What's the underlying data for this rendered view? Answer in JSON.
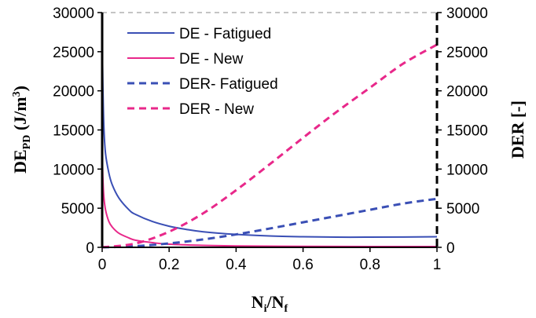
{
  "chart_data": {
    "type": "line",
    "xlabel": {
      "main": "N",
      "sub1": "i",
      "mid": "/N",
      "sub2": "f"
    },
    "ylabel_left": {
      "main": "DE",
      "sub": "PD",
      "mid": " (J/m",
      "sup": "3",
      "end": ")"
    },
    "ylabel_right": "DER [-]",
    "xlim": [
      0,
      1
    ],
    "ylim": [
      0,
      30000
    ],
    "x_ticks": [
      "0",
      "0.2",
      "0.4",
      "0.6",
      "0.8",
      "1"
    ],
    "y_ticks": [
      "0",
      "5000",
      "10000",
      "15000",
      "20000",
      "25000",
      "30000"
    ],
    "legend_position": "top-left",
    "series": [
      {
        "name": "DE - Fatigued",
        "color": "#3a4fb5",
        "dash": false,
        "axis": "left",
        "x": [
          0,
          0.002,
          0.005,
          0.01,
          0.02,
          0.03,
          0.05,
          0.08,
          0.1,
          0.15,
          0.2,
          0.25,
          0.3,
          0.4,
          0.5,
          0.6,
          0.7,
          0.8,
          0.9,
          1.0
        ],
        "y": [
          27500,
          21000,
          15500,
          12000,
          9500,
          8000,
          6300,
          4800,
          4200,
          3300,
          2700,
          2300,
          2000,
          1650,
          1450,
          1350,
          1300,
          1300,
          1320,
          1350
        ]
      },
      {
        "name": "DE - New",
        "color": "#e8288a",
        "dash": false,
        "axis": "left",
        "x": [
          0,
          0.002,
          0.005,
          0.01,
          0.02,
          0.03,
          0.05,
          0.08,
          0.1,
          0.15,
          0.2,
          0.3,
          0.4,
          0.6,
          0.8,
          1.0
        ],
        "y": [
          12500,
          9000,
          6500,
          4800,
          3300,
          2600,
          1800,
          1200,
          900,
          600,
          400,
          250,
          180,
          120,
          100,
          100
        ]
      },
      {
        "name": "DER- Fatigued",
        "color": "#3a4fb5",
        "dash": true,
        "axis": "right",
        "x": [
          0,
          0.1,
          0.2,
          0.3,
          0.4,
          0.5,
          0.6,
          0.7,
          0.8,
          0.9,
          1.0
        ],
        "y": [
          0,
          150,
          500,
          1000,
          1650,
          2400,
          3200,
          4000,
          4800,
          5600,
          6200
        ]
      },
      {
        "name": "DER - New",
        "color": "#e8288a",
        "dash": true,
        "axis": "right",
        "x": [
          0,
          0.1,
          0.2,
          0.3,
          0.4,
          0.5,
          0.6,
          0.7,
          0.8,
          0.9,
          1.0
        ],
        "y": [
          0,
          500,
          2000,
          4300,
          7300,
          10600,
          14000,
          17300,
          20400,
          23500,
          25900
        ]
      }
    ]
  }
}
